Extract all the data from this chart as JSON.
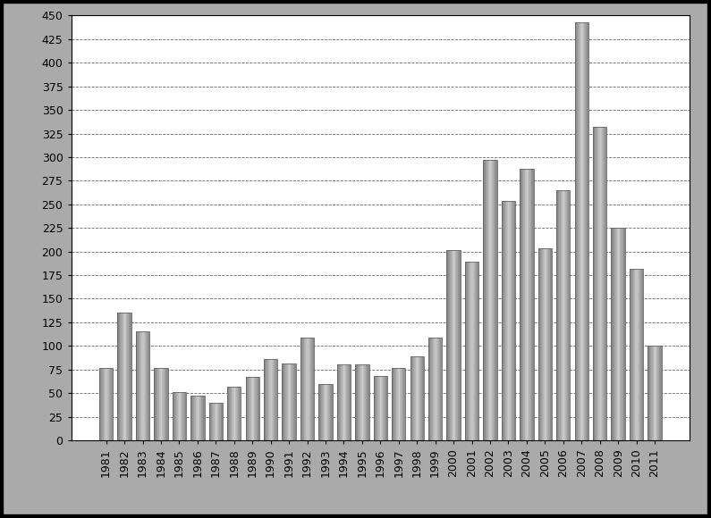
{
  "categories": [
    "1981",
    "1982",
    "1983",
    "1984",
    "1985",
    "1986",
    "1987",
    "1988",
    "1989",
    "1990",
    "1991",
    "1992",
    "1993",
    "1994",
    "1995",
    "1996",
    "1997",
    "1998",
    "1999",
    "2000",
    "2001",
    "2002",
    "2003",
    "2004",
    "2005",
    "2006",
    "2007",
    "2008",
    "2009",
    "2010",
    "2011"
  ],
  "values": [
    77,
    135,
    115,
    77,
    51,
    47,
    40,
    57,
    67,
    86,
    81,
    109,
    60,
    80,
    80,
    68,
    77,
    89,
    109,
    202,
    189,
    297,
    254,
    288,
    203,
    265,
    443,
    332,
    225,
    182,
    100
  ],
  "bar_color_left": "#888888",
  "bar_color_mid": "#cccccc",
  "bar_color_right": "#888888",
  "bar_edge_color": "#666666",
  "background_color": "#ffffff",
  "outer_background": "#aaaaaa",
  "grid_color": "#555555",
  "ylim": [
    0,
    450
  ],
  "yticks": [
    0,
    25,
    50,
    75,
    100,
    125,
    150,
    175,
    200,
    225,
    250,
    275,
    300,
    325,
    350,
    375,
    400,
    425,
    450
  ],
  "tick_fontsize": 9,
  "bar_width": 0.75,
  "border_color": "#000000",
  "border_linewidth": 3.0
}
